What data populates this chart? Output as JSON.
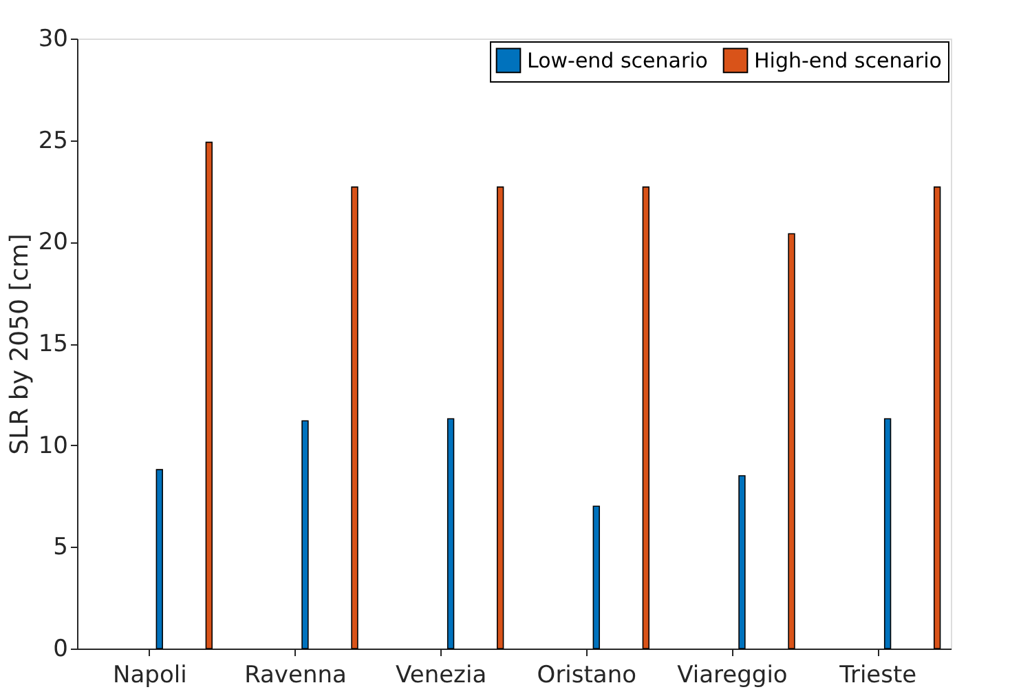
{
  "chart_data": {
    "type": "bar",
    "ylabel": "SLR by 2050 [cm]",
    "categories": [
      "Napoli",
      "Ravenna",
      "Venezia",
      "Oristano",
      "Viareggio",
      "Trieste"
    ],
    "series": [
      {
        "name": "Low-end scenario",
        "color": "#0072bd",
        "values": [
          8.8,
          11.2,
          11.3,
          7.0,
          8.5,
          11.3
        ]
      },
      {
        "name": "High-end scenario",
        "color": "#d95319",
        "values": [
          24.9,
          22.7,
          22.7,
          22.7,
          20.4,
          22.7
        ]
      }
    ],
    "ylim": [
      0,
      30
    ],
    "yticks": [
      0,
      5,
      10,
      15,
      20,
      25,
      30
    ],
    "grid": false,
    "legend": "top right"
  }
}
